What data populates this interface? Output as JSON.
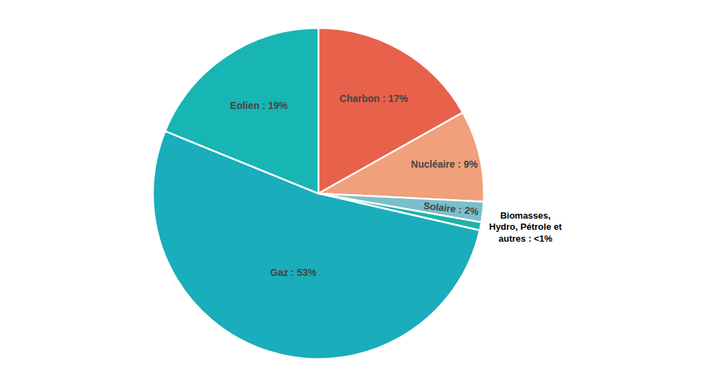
{
  "chart_data": {
    "type": "pie",
    "categories": [
      "Charbon : 17%",
      "Nucléaire : 9%",
      "Solaire : 2%",
      "Biomasses,\nHydro, Pétrole et\nautres : <1%",
      "Gaz : 53%",
      "Eolien : 19%"
    ],
    "values": [
      17,
      9,
      2,
      0.8,
      53,
      19
    ],
    "colors": [
      "#E8614A",
      "#F0A07A",
      "#7BBFCC",
      "#20B2AA",
      "#1AADBC",
      "#18B5B5"
    ]
  }
}
